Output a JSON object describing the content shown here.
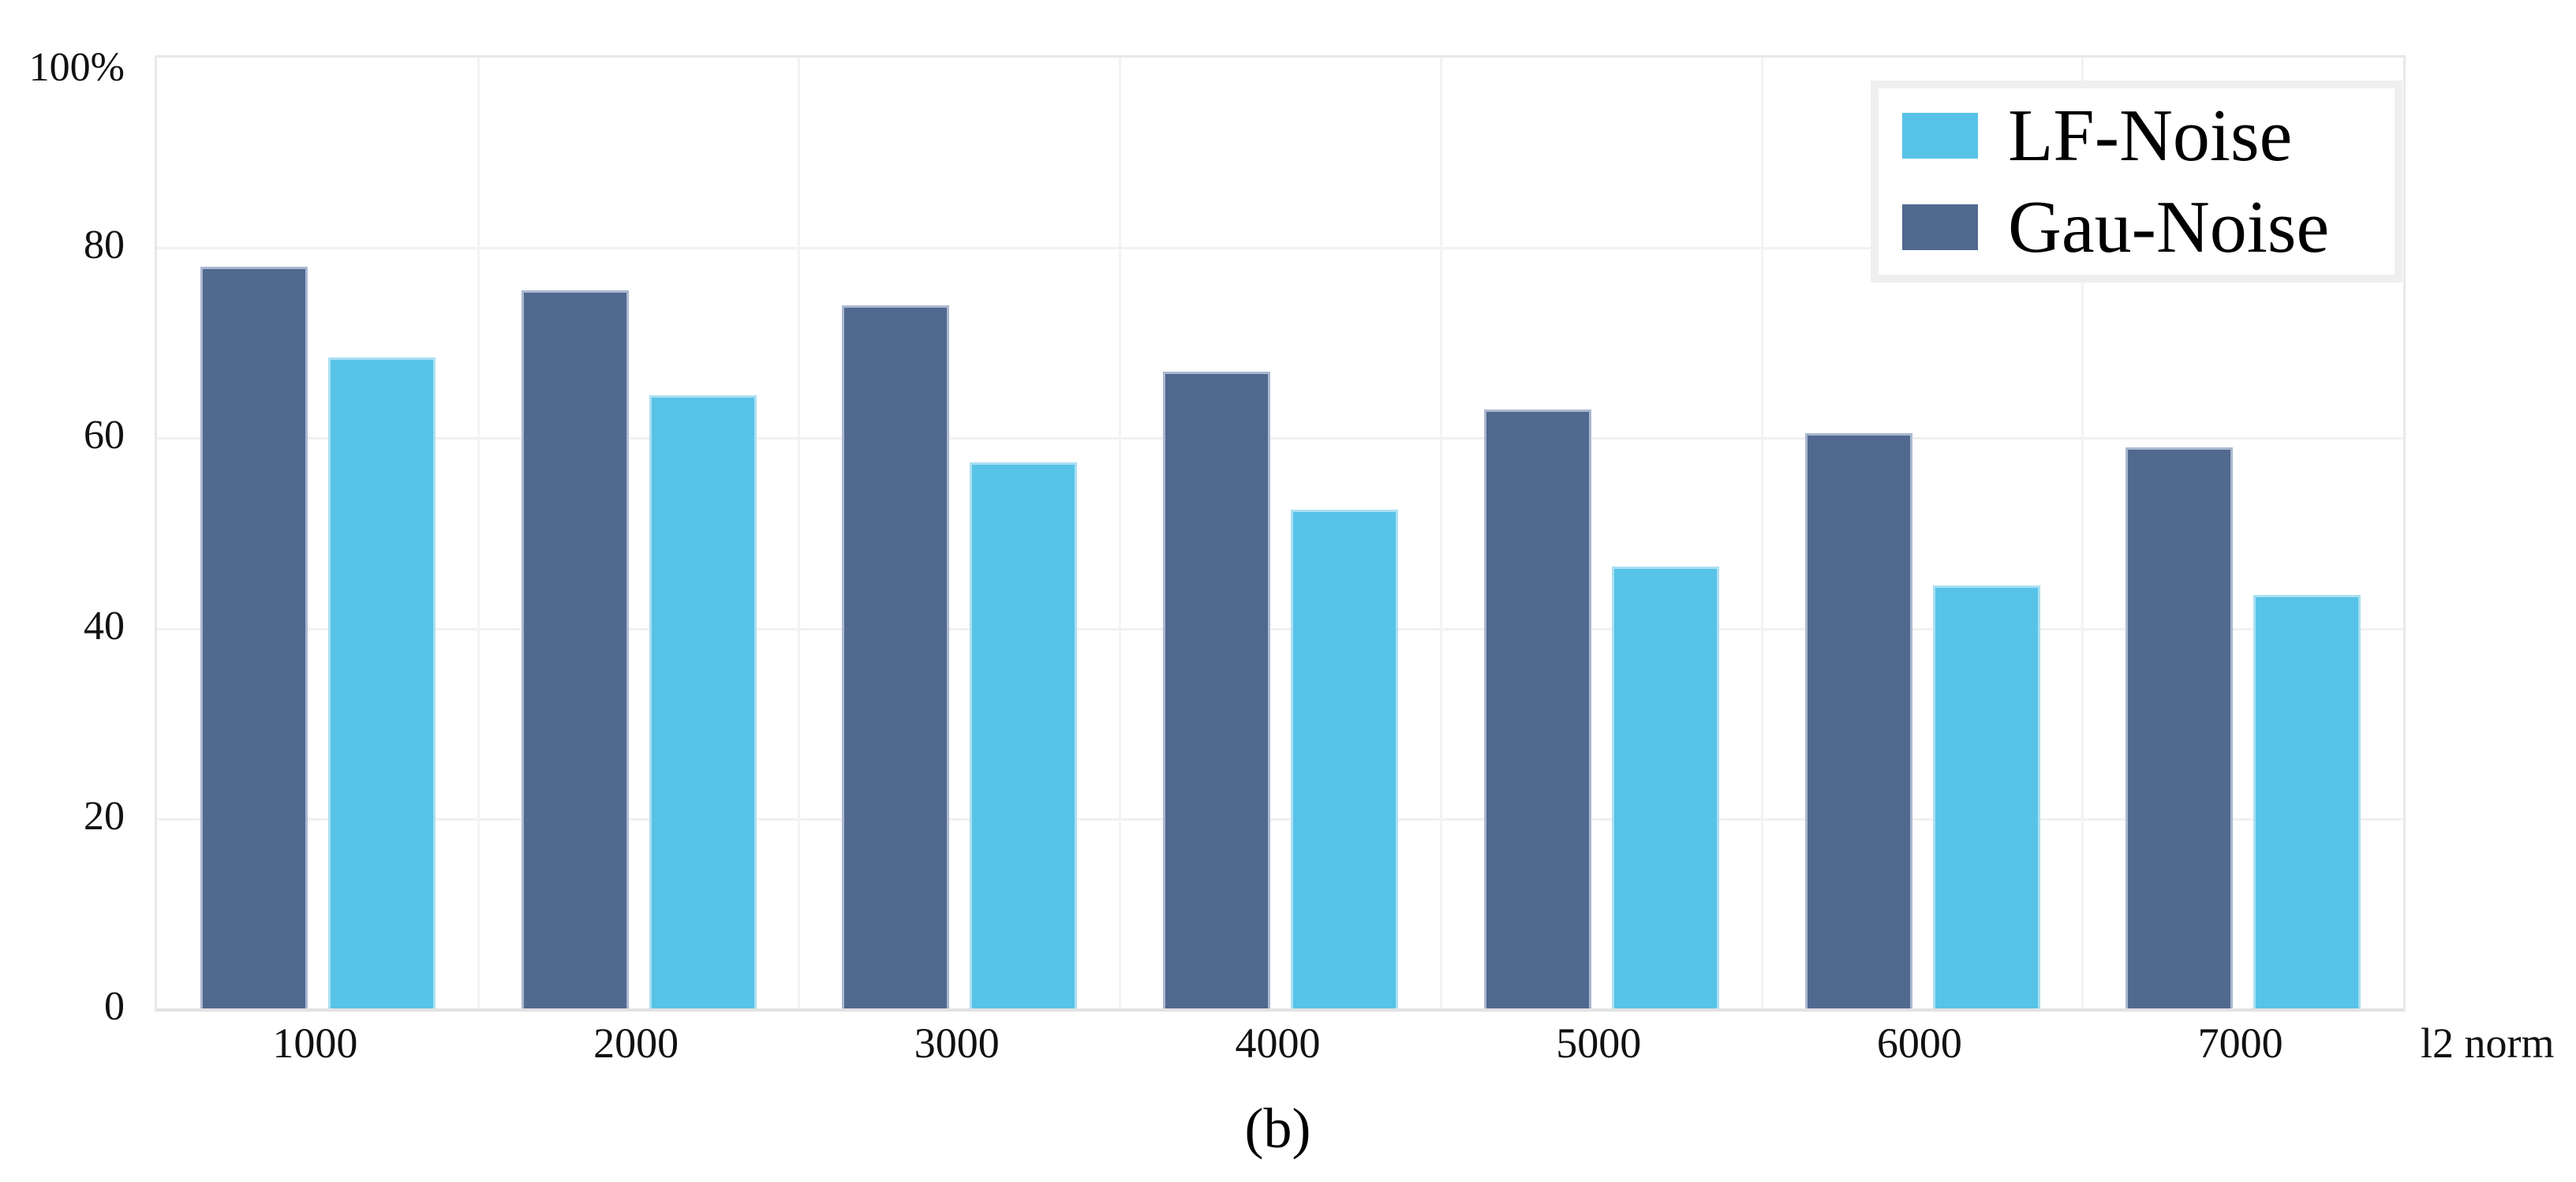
{
  "figure": {
    "caption": "(b)",
    "background": "#ffffff"
  },
  "chart_data": {
    "type": "bar",
    "title": "",
    "xlabel": "l2 norm",
    "ylabel": "",
    "categories": [
      "1000",
      "2000",
      "3000",
      "4000",
      "5000",
      "6000",
      "7000"
    ],
    "series": [
      {
        "name": "LF-Noise",
        "color": "#57c3e7",
        "edge_color": "#aadff2",
        "values": [
          68.5,
          64.5,
          57.5,
          52.5,
          46.5,
          44.5,
          43.5
        ]
      },
      {
        "name": "Gau-Noise",
        "color": "#51688f",
        "edge_color": "#aab8d0",
        "values": [
          78,
          75.5,
          74,
          67,
          63,
          60.5,
          59
        ]
      }
    ],
    "bar_draw_order": [
      "Gau-Noise",
      "LF-Noise"
    ],
    "ylim": [
      0,
      100
    ],
    "y_ticks": [
      {
        "value": 0,
        "label": "0"
      },
      {
        "value": 20,
        "label": "20"
      },
      {
        "value": 40,
        "label": "40"
      },
      {
        "value": 60,
        "label": "60"
      },
      {
        "value": 80,
        "label": "80"
      },
      {
        "value": 100,
        "label": "100%"
      }
    ],
    "grid": true,
    "grid_color": "#f1f1f1",
    "legend_position": "top-right",
    "legend_entries": [
      "LF-Noise",
      "Gau-Noise"
    ]
  }
}
